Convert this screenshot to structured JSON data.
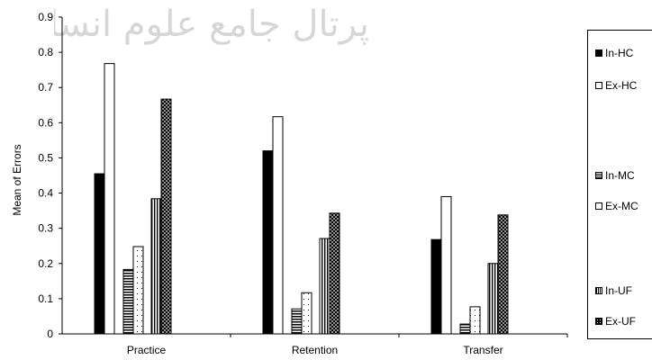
{
  "watermark_text": "پرتال جامع علوم انسانی",
  "chart_data": {
    "type": "bar",
    "title": "",
    "xlabel": "",
    "ylabel": "Mean of Errors",
    "categories": [
      "Practice",
      "Retention",
      "Transfer"
    ],
    "ylim": [
      0,
      0.9
    ],
    "yticks": [
      0,
      0.1,
      0.2,
      0.3,
      0.4,
      0.5,
      0.6,
      0.7,
      0.8,
      0.9
    ],
    "ytick_labels": [
      "0",
      "0.1",
      "0.2",
      "0.3",
      "0.4",
      "0.5",
      "0.6",
      "0.7",
      "0.8",
      "0.9"
    ],
    "grid": false,
    "legend_position": "right",
    "series": [
      {
        "name": "In-HC",
        "values": [
          0.455,
          0.52,
          0.268
        ],
        "pattern": "solid-black"
      },
      {
        "name": "Ex-HC",
        "values": [
          0.768,
          0.617,
          0.39
        ],
        "pattern": "white"
      },
      {
        "name": "In-MC",
        "values": [
          0.183,
          0.071,
          0.028
        ],
        "pattern": "horizontal-stripes"
      },
      {
        "name": "Ex-MC",
        "values": [
          0.248,
          0.117,
          0.077
        ],
        "pattern": "dotted-white"
      },
      {
        "name": "In-UF",
        "values": [
          0.384,
          0.271,
          0.2
        ],
        "pattern": "vertical-stripes"
      },
      {
        "name": "Ex-UF",
        "values": [
          0.667,
          0.343,
          0.338
        ],
        "pattern": "checker-dots"
      }
    ]
  },
  "colors": {
    "bar_edge": "#000000",
    "fill_dark": "#000000",
    "fill_light": "#ffffff"
  }
}
